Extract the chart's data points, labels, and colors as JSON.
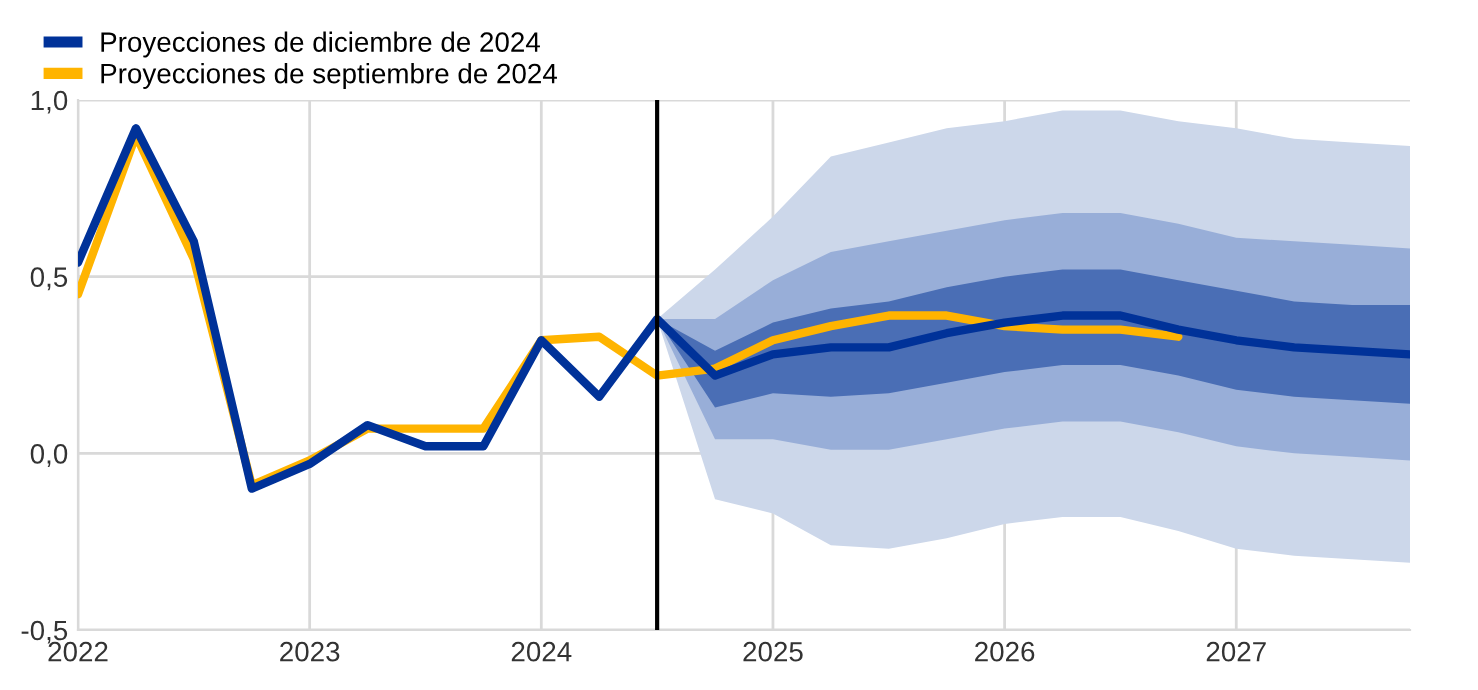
{
  "chart_data": {
    "type": "line",
    "xlim": [
      2022,
      2027.75
    ],
    "xticks": [
      2022,
      2023,
      2024,
      2025,
      2026,
      2027
    ],
    "ylim": [
      -0.5,
      1.0
    ],
    "yticks": [
      {
        "value": -0.5,
        "label": "-0,5"
      },
      {
        "value": 0.0,
        "label": "0,0"
      },
      {
        "value": 0.5,
        "label": "0,5"
      },
      {
        "value": 1.0,
        "label": "1,0"
      }
    ],
    "grid": true,
    "legend": "top left",
    "ref_lines": [
      {
        "axis": "x",
        "value": 2024.5,
        "color": "#000000"
      }
    ],
    "series": [
      {
        "color": "#ccd7ea",
        "x": [
          2024.5,
          2024.75,
          2025,
          2025.25,
          2025.5,
          2025.75,
          2026,
          2026.25,
          2026.5,
          2026.75,
          2027,
          2027.25,
          2027.5,
          2027.75
        ],
        "values": [
          null,
          null,
          null,
          null,
          null,
          null,
          null,
          null,
          null,
          null,
          null,
          null,
          null,
          null
        ],
        "upper": [
          0.38,
          0.52,
          0.67,
          0.84,
          0.88,
          0.92,
          0.94,
          0.97,
          0.97,
          0.94,
          0.92,
          0.89,
          0.88,
          0.87
        ],
        "lower": [
          0.38,
          -0.13,
          -0.17,
          -0.26,
          -0.27,
          -0.24,
          -0.2,
          -0.18,
          -0.18,
          -0.22,
          -0.27,
          -0.29,
          -0.3,
          -0.31
        ]
      },
      {
        "color": "#98aed8",
        "x": [
          2024.5,
          2024.75,
          2025,
          2025.25,
          2025.5,
          2025.75,
          2026,
          2026.25,
          2026.5,
          2026.75,
          2027,
          2027.25,
          2027.5,
          2027.75
        ],
        "values": [
          null,
          null,
          null,
          null,
          null,
          null,
          null,
          null,
          null,
          null,
          null,
          null,
          null,
          null
        ],
        "upper": [
          0.38,
          0.38,
          0.49,
          0.57,
          0.6,
          0.63,
          0.66,
          0.68,
          0.68,
          0.65,
          0.61,
          0.6,
          0.59,
          0.58
        ],
        "lower": [
          0.38,
          0.04,
          0.04,
          0.01,
          0.01,
          0.04,
          0.07,
          0.09,
          0.09,
          0.06,
          0.02,
          0.0,
          -0.01,
          -0.02
        ]
      },
      {
        "color": "#4a6eb5",
        "x": [
          2024.5,
          2024.75,
          2025,
          2025.25,
          2025.5,
          2025.75,
          2026,
          2026.25,
          2026.5,
          2026.75,
          2027,
          2027.25,
          2027.5,
          2027.75
        ],
        "values": [
          null,
          null,
          null,
          null,
          null,
          null,
          null,
          null,
          null,
          null,
          null,
          null,
          null,
          null
        ],
        "upper": [
          0.38,
          0.29,
          0.37,
          0.41,
          0.43,
          0.47,
          0.5,
          0.52,
          0.52,
          0.49,
          0.46,
          0.43,
          0.42,
          0.42
        ],
        "lower": [
          0.38,
          0.13,
          0.17,
          0.16,
          0.17,
          0.2,
          0.23,
          0.25,
          0.25,
          0.22,
          0.18,
          0.16,
          0.15,
          0.14
        ]
      },
      {
        "type": "line",
        "name": "Proyecciones de septiembre de 2024",
        "color": "#ffb400",
        "x": [
          2022,
          2022.25,
          2022.5,
          2022.75,
          2023,
          2023.25,
          2023.5,
          2023.75,
          2024,
          2024.25,
          2024.5,
          2024.75,
          2025,
          2025.25,
          2025.5,
          2025.75,
          2026,
          2026.25,
          2026.5,
          2026.75
        ],
        "values": [
          0.45,
          0.9,
          0.55,
          -0.09,
          -0.02,
          0.07,
          0.07,
          0.07,
          0.32,
          0.33,
          0.22,
          0.24,
          0.32,
          0.36,
          0.39,
          0.39,
          0.36,
          0.35,
          0.35,
          0.33
        ]
      },
      {
        "type": "line",
        "name": "Proyecciones de diciembre de 2024",
        "color": "#003299",
        "x": [
          2022,
          2022.25,
          2022.5,
          2022.75,
          2023,
          2023.25,
          2023.5,
          2023.75,
          2024,
          2024.25,
          2024.5,
          2024.75,
          2025,
          2025.25,
          2025.5,
          2025.75,
          2026,
          2026.25,
          2026.5,
          2026.75,
          2027,
          2027.25,
          2027.5,
          2027.75
        ],
        "values": [
          0.54,
          0.92,
          0.6,
          -0.1,
          -0.03,
          0.08,
          0.02,
          0.02,
          0.32,
          0.16,
          0.38,
          0.22,
          0.28,
          0.3,
          0.3,
          0.34,
          0.37,
          0.39,
          0.39,
          0.35,
          0.32,
          0.3,
          0.29,
          0.28
        ]
      }
    ]
  }
}
